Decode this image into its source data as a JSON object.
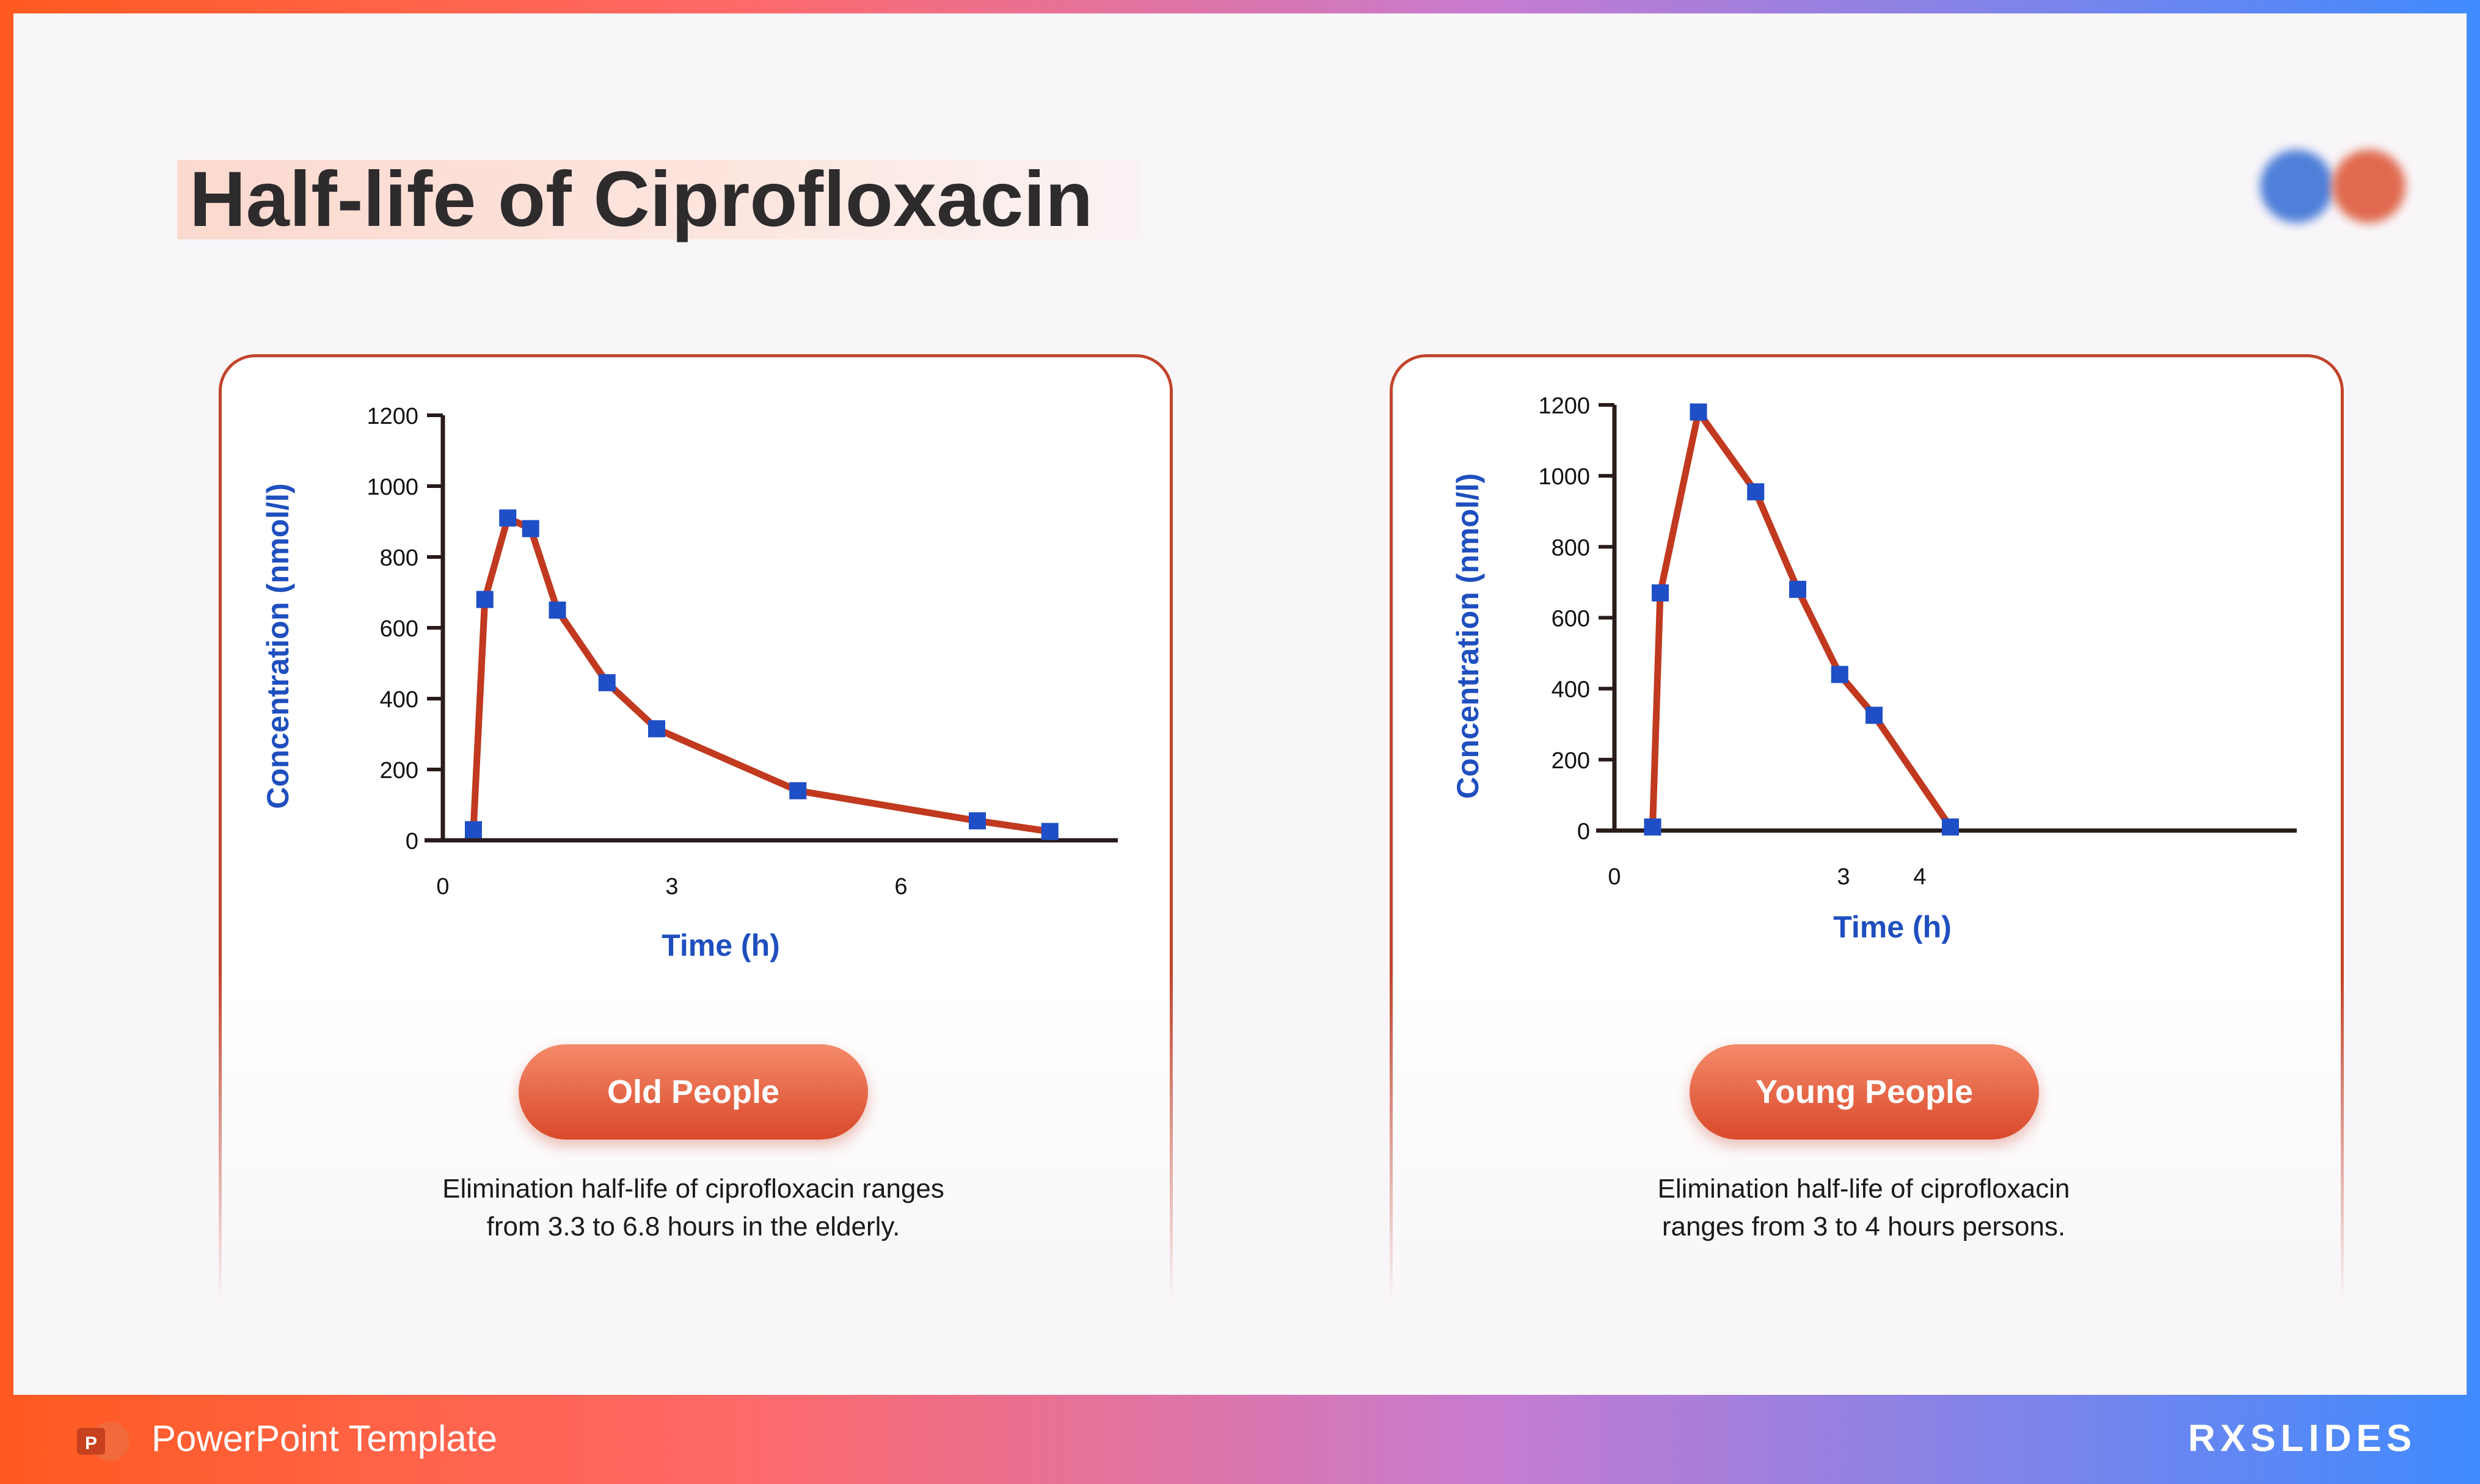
{
  "title": "Half-life of Ciprofloxacin",
  "footer": {
    "text": "PowerPoint Template",
    "brand": "RXSLIDES"
  },
  "charts": [
    {
      "id": "old",
      "label": "Old People",
      "description_line1": "Elimination half-life of ciprofloxacin ranges",
      "description_line2": "from 3.3 to 6.8 hours in the elderly."
    },
    {
      "id": "young",
      "label": "Young People",
      "description_line1": "Elimination half-life of ciprofloxacin",
      "description_line2": "ranges from 3 to 4 hours persons."
    }
  ],
  "chart_data": [
    {
      "type": "line",
      "title": "Old People",
      "xlabel": "Time (h)",
      "ylabel": "Concentration (nmol/l)",
      "xticks": [
        "0",
        "3",
        "6"
      ],
      "xtick_values": [
        0,
        3,
        6
      ],
      "yticks": [
        "0",
        "200",
        "400",
        "600",
        "800",
        "1000",
        "1200"
      ],
      "ytick_values": [
        0,
        200,
        400,
        600,
        800,
        1000,
        1200
      ],
      "xlim": [
        0,
        9
      ],
      "ylim": [
        0,
        1200
      ],
      "x": [
        0.4,
        0.55,
        0.85,
        1.15,
        1.5,
        2.15,
        2.8,
        4.65,
        7,
        7.95
      ],
      "y": [
        30,
        680,
        910,
        880,
        650,
        445,
        315,
        140,
        55,
        25
      ],
      "line_color": "#c1391f",
      "marker_color": "#1f4fc6"
    },
    {
      "type": "line",
      "title": "Young People",
      "xlabel": "Time (h)",
      "ylabel": "Concentration (nmol/l)",
      "xticks": [
        "0",
        "3",
        "4"
      ],
      "xtick_values": [
        0,
        3,
        4
      ],
      "yticks": [
        "0",
        "200",
        "400",
        "600",
        "800",
        "1000",
        "1200"
      ],
      "ytick_values": [
        0,
        200,
        400,
        600,
        800,
        1000,
        1200
      ],
      "xlim": [
        0,
        9
      ],
      "ylim": [
        0,
        1200
      ],
      "x": [
        0.5,
        0.6,
        1.1,
        1.85,
        2.4,
        2.95,
        3.4,
        4.4
      ],
      "y": [
        10,
        670,
        1180,
        955,
        680,
        440,
        325,
        10
      ],
      "line_color": "#c1391f",
      "marker_color": "#1f4fc6"
    }
  ]
}
